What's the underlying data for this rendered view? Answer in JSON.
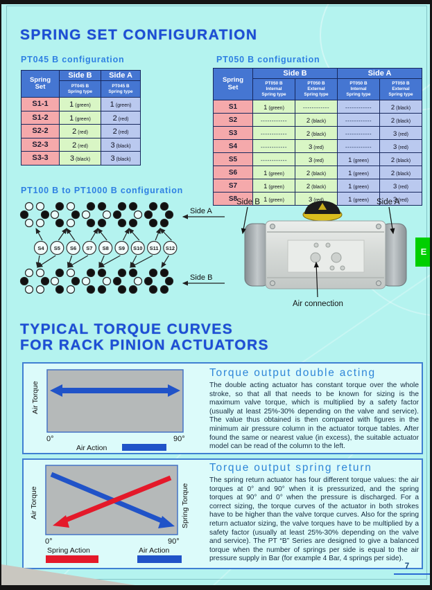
{
  "page": {
    "title": "SPRING SET CONFIGURATION",
    "section2_title_line1": "TYPICAL TORQUE CURVES",
    "section2_title_line2": "FOR RACK PINION ACTUATORS",
    "page_number": "7",
    "side_tab_letter": "E",
    "colors": {
      "background": "#b4f3ef",
      "title_blue": "#1c4ed6",
      "header_blue": "#4576d2",
      "row_pink": "#f5a9ab",
      "side_b_green": "#d9f6c5",
      "side_a_blue": "#bac9ef",
      "arrow_blue": "#2053c8",
      "arrow_red": "#e4192a",
      "tab_green": "#00cf00",
      "plot_gray": "#b5b9b9"
    }
  },
  "pt045": {
    "label": "PT045 B configuration",
    "headers": {
      "spring_set": "Spring\nSet",
      "side_b": "Side B",
      "side_a": "Side A",
      "sub_b": "PT045 B\nSpring type",
      "sub_a": "PT045 B\nSpring type"
    },
    "rows": [
      {
        "set": "S1-1",
        "cells": [
          {
            "n": "1",
            "c": "(green)"
          },
          {
            "n": "1",
            "c": "(green)"
          }
        ]
      },
      {
        "set": "S1-2",
        "cells": [
          {
            "n": "1",
            "c": "(green)"
          },
          {
            "n": "2",
            "c": "(red)"
          }
        ]
      },
      {
        "set": "S2-2",
        "cells": [
          {
            "n": "2",
            "c": "(red)"
          },
          {
            "n": "2",
            "c": "(red)"
          }
        ]
      },
      {
        "set": "S2-3",
        "cells": [
          {
            "n": "2",
            "c": "(red)"
          },
          {
            "n": "3",
            "c": "(black)"
          }
        ]
      },
      {
        "set": "S3-3",
        "cells": [
          {
            "n": "3",
            "c": "(black)"
          },
          {
            "n": "3",
            "c": "(black)"
          }
        ]
      }
    ]
  },
  "pt050": {
    "label": "PT050 B configuration",
    "headers": {
      "spring_set": "Spring\nSet",
      "side_b": "Side B",
      "side_a": "Side A",
      "subs": [
        "PT050 B\nInternal\nSpring type",
        "PT050 B\nExternal\nSpring type",
        "PT050 B\nInternal\nSpring type",
        "PT050 B\nExternal\nSpring type"
      ]
    },
    "dash": "------------",
    "rows": [
      {
        "set": "S1",
        "cells": [
          {
            "n": "1",
            "c": "(green)"
          },
          null,
          null,
          {
            "n": "2",
            "c": "(black)"
          }
        ]
      },
      {
        "set": "S2",
        "cells": [
          null,
          {
            "n": "2",
            "c": "(black)"
          },
          null,
          {
            "n": "2",
            "c": "(black)"
          }
        ]
      },
      {
        "set": "S3",
        "cells": [
          null,
          {
            "n": "2",
            "c": "(black)"
          },
          null,
          {
            "n": "3",
            "c": "(red)"
          }
        ]
      },
      {
        "set": "S4",
        "cells": [
          null,
          {
            "n": "3",
            "c": "(red)"
          },
          null,
          {
            "n": "3",
            "c": "(red)"
          }
        ]
      },
      {
        "set": "S5",
        "cells": [
          null,
          {
            "n": "3",
            "c": "(red)"
          },
          {
            "n": "1",
            "c": "(green)"
          },
          {
            "n": "2",
            "c": "(black)"
          }
        ]
      },
      {
        "set": "S6",
        "cells": [
          {
            "n": "1",
            "c": "(green)"
          },
          {
            "n": "2",
            "c": "(black)"
          },
          {
            "n": "1",
            "c": "(green)"
          },
          {
            "n": "2",
            "c": "(black)"
          }
        ]
      },
      {
        "set": "S7",
        "cells": [
          {
            "n": "1",
            "c": "(green)"
          },
          {
            "n": "2",
            "c": "(black)"
          },
          {
            "n": "1",
            "c": "(green)"
          },
          {
            "n": "3",
            "c": "(red)"
          }
        ]
      },
      {
        "set": "S8",
        "cells": [
          {
            "n": "1",
            "c": "(green)"
          },
          {
            "n": "3",
            "c": "(red)"
          },
          {
            "n": "1",
            "c": "(green)"
          },
          {
            "n": "3",
            "c": "(red)"
          }
        ]
      }
    ]
  },
  "spring_diagram": {
    "label": "PT100 B to PT1000 B  configuration",
    "side_a_label": "Side A",
    "side_b_label": "Side B",
    "clusters_springs_per_side": [
      2,
      3,
      4,
      5,
      6
    ],
    "sets": [
      {
        "label": "S4",
        "side_a_cluster": 0,
        "side_b_cluster": 0
      },
      {
        "label": "S5",
        "side_a_cluster": 1,
        "side_b_cluster": 0
      },
      {
        "label": "S6",
        "side_a_cluster": 1,
        "side_b_cluster": 1
      },
      {
        "label": "S7",
        "side_a_cluster": 2,
        "side_b_cluster": 1
      },
      {
        "label": "S8",
        "side_a_cluster": 2,
        "side_b_cluster": 2
      },
      {
        "label": "S9",
        "side_a_cluster": 3,
        "side_b_cluster": 2
      },
      {
        "label": "S10",
        "side_a_cluster": 3,
        "side_b_cluster": 3
      },
      {
        "label": "S11",
        "side_a_cluster": 4,
        "side_b_cluster": 3
      },
      {
        "label": "S12",
        "side_a_cluster": 4,
        "side_b_cluster": 4
      }
    ]
  },
  "actuator": {
    "side_b_label": "Side B",
    "side_a_label": "Side A",
    "air_connection_label": "Air connection"
  },
  "double_acting": {
    "heading": "Torque output double acting",
    "body": "The double acting actuator has constant torque over the whole stroke, so that all that needs to be known for sizing is the maximum valve torque, which is multiplied by a safety factor (usually at least 25%-30%  depending on the valve and service). The value thus obtained is then compared with figures in the minimum air pressure column in the actuator torque tables. After found the same or nearest value (in excess), the suitable actuator model can be read of the column to the left.",
    "chart": {
      "type": "line",
      "y_label": "Air Torque",
      "x_start": "0°",
      "x_end": "90°",
      "series": [
        {
          "name": "Air Action",
          "color": "#2053c8",
          "shape": "constant horizontal double arrow"
        }
      ],
      "legend": [
        {
          "label": "Air Action",
          "color": "#2053c8"
        }
      ]
    }
  },
  "spring_return": {
    "heading": "Torque output spring return",
    "body": "The spring return actuator has four different torque values: the air torques at 0° and 90° when it is pressurized, and the spring torques at 90° and 0° when the pressure is discharged.  For a correct sizing, the torque curves of the actuator in both strokes have to be higher than the valve torque curves. Also for the spring return actuator sizing, the valve torques have to be multiplied by a safety factor (usually at least 25%-30% depending on the valve and service). The PT “B” Series are designed to give a balanced torque when the number of springs per side is equal to the air pressure supply in Bar (for example  4 Bar, 4 springs per side).",
    "chart": {
      "type": "line",
      "y_label_left": "Air Torque",
      "y_label_right": "Spring Torque",
      "x_start": "0°",
      "x_end": "90°",
      "series": [
        {
          "name": "Air Action",
          "color": "#2053c8",
          "shape": "descending left-to-right"
        },
        {
          "name": "Spring Action",
          "color": "#e4192a",
          "shape": "descending right-to-left"
        }
      ],
      "legend": [
        {
          "label": "Spring Action",
          "color": "#e4192a"
        },
        {
          "label": "Air Action",
          "color": "#2053c8"
        }
      ]
    }
  }
}
